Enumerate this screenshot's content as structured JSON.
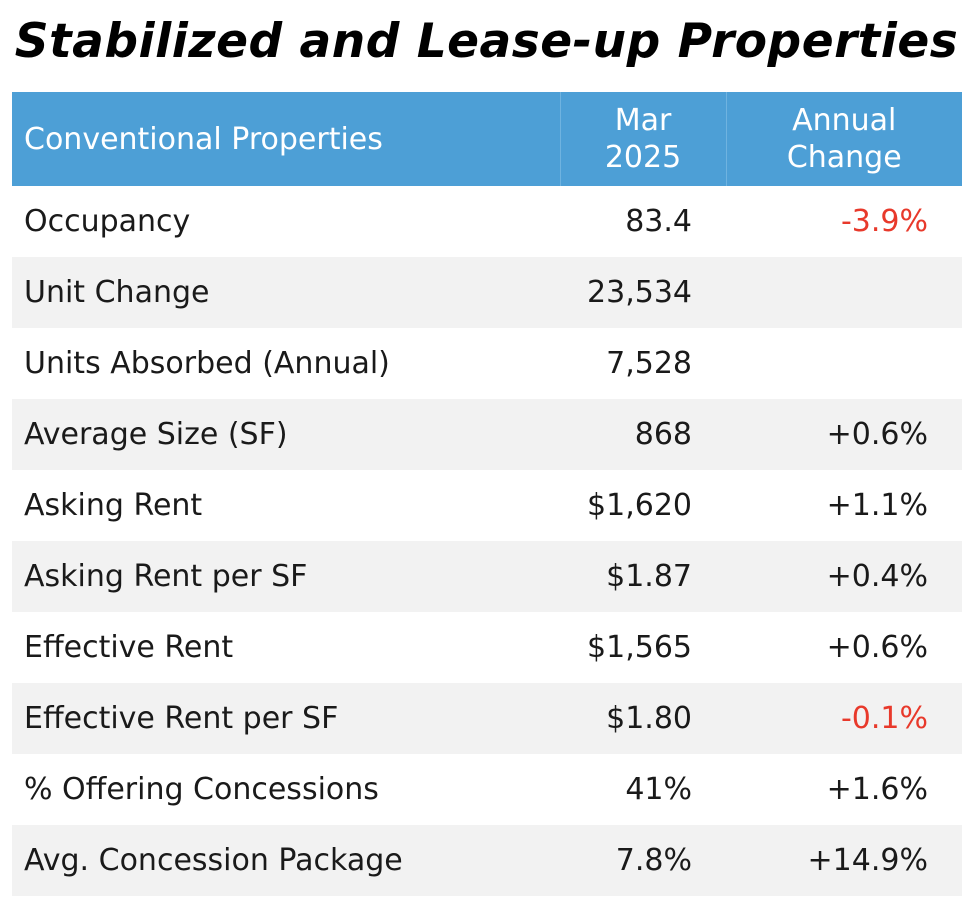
{
  "title": "Stabilized and Lease-up Properties",
  "header": {
    "label": "Conventional Properties",
    "period_line1": "Mar",
    "period_line2": "2025",
    "change_line1": "Annual",
    "change_line2": "Change"
  },
  "colors": {
    "header_bg": "#4d9fd6",
    "negative": "#e8392b",
    "row_alt": "#f2f2f2"
  },
  "chart_data": {
    "type": "table",
    "title": "Stabilized and Lease-up Properties",
    "columns": [
      "Conventional Properties",
      "Mar 2025",
      "Annual Change"
    ],
    "rows": [
      {
        "label": "Occupancy",
        "value": "83.4",
        "change": "-3.9%",
        "negative": true
      },
      {
        "label": "Unit Change",
        "value": "23,534",
        "change": "",
        "negative": false
      },
      {
        "label": "Units Absorbed (Annual)",
        "value": "7,528",
        "change": "",
        "negative": false
      },
      {
        "label": "Average Size (SF)",
        "value": "868",
        "change": "+0.6%",
        "negative": false
      },
      {
        "label": "Asking Rent",
        "value": "$1,620",
        "change": "+1.1%",
        "negative": false
      },
      {
        "label": "Asking Rent per SF",
        "value": "$1.87",
        "change": "+0.4%",
        "negative": false
      },
      {
        "label": "Effective Rent",
        "value": "$1,565",
        "change": "+0.6%",
        "negative": false
      },
      {
        "label": "Effective Rent per SF",
        "value": "$1.80",
        "change": "-0.1%",
        "negative": true
      },
      {
        "label": "% Offering Concessions",
        "value": "41%",
        "change": "+1.6%",
        "negative": false
      },
      {
        "label": "Avg. Concession Package",
        "value": "7.8%",
        "change": "+14.9%",
        "negative": false
      }
    ]
  }
}
